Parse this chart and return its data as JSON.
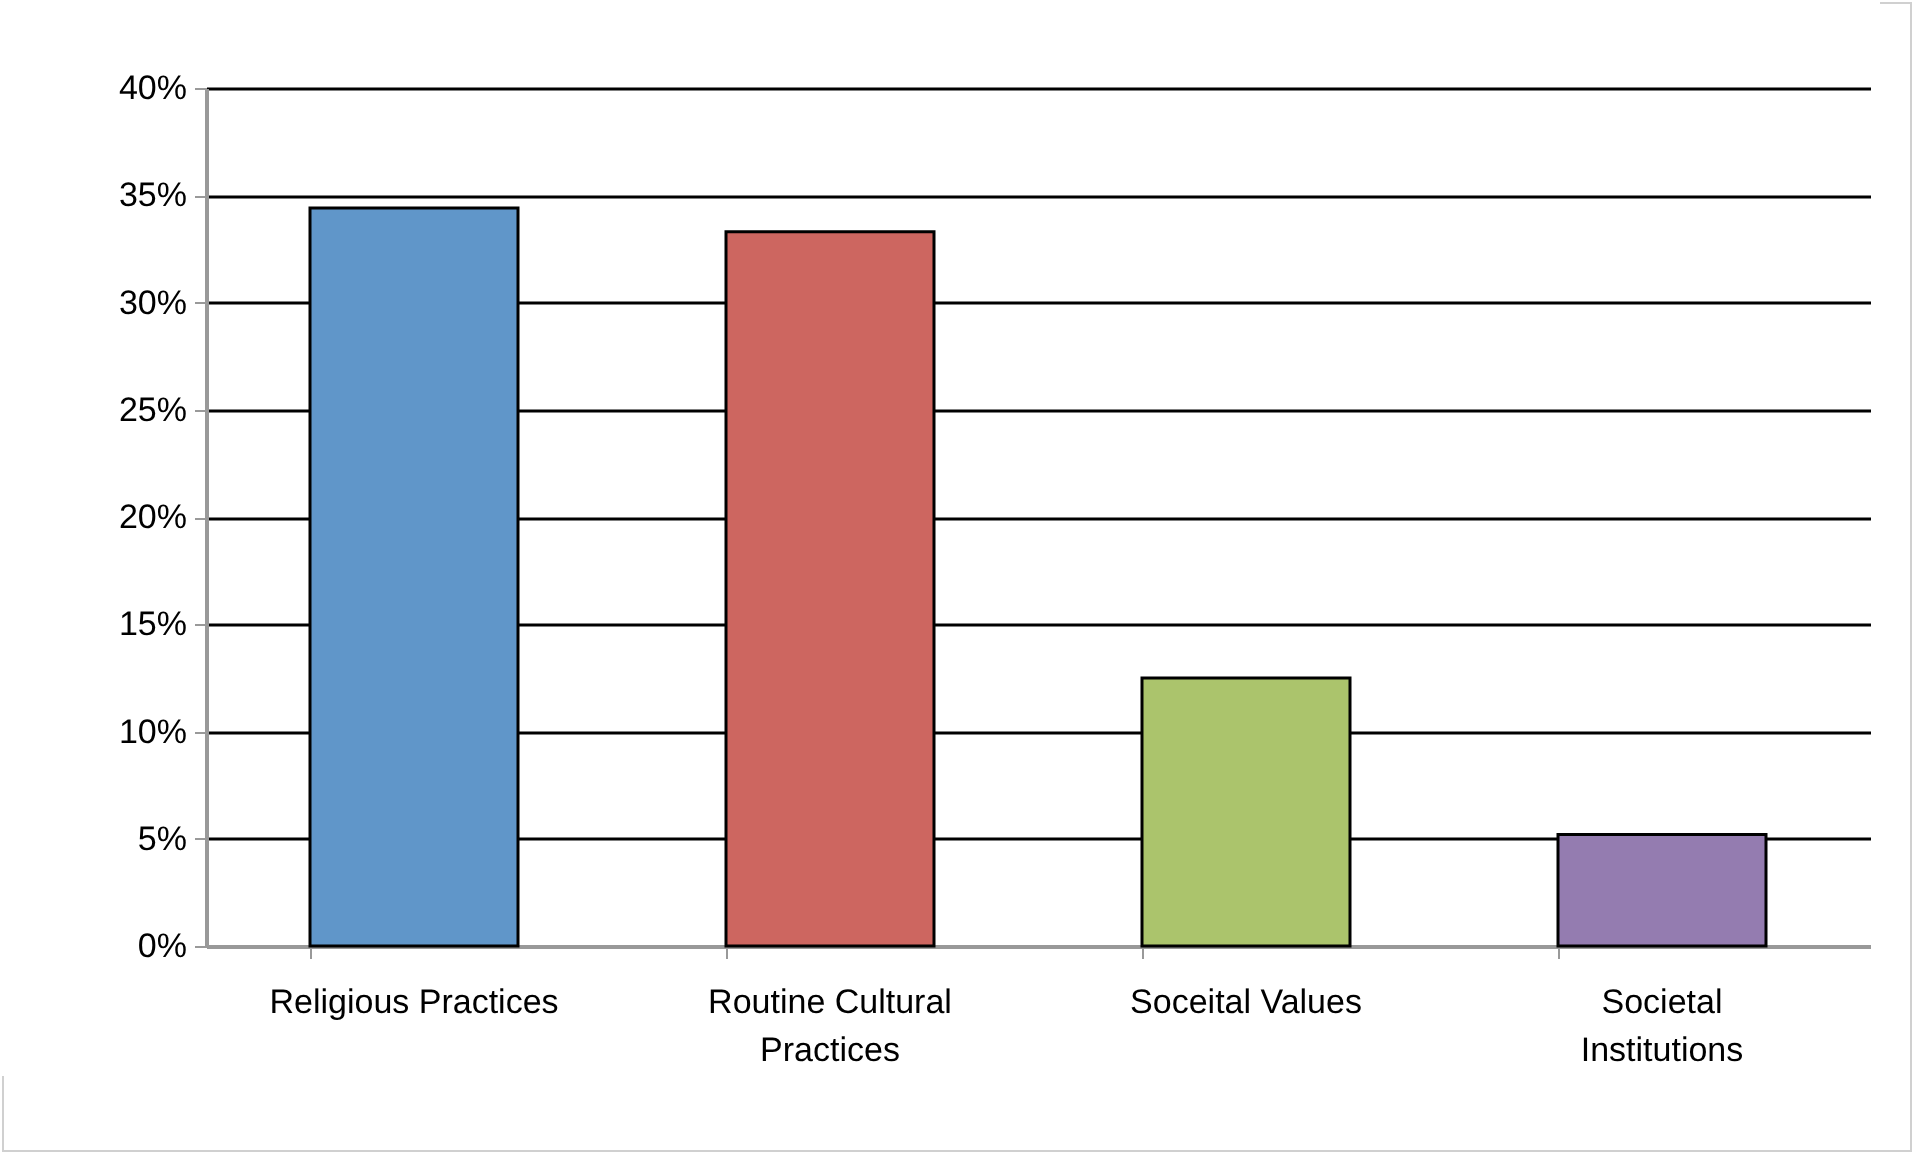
{
  "chart_data": {
    "type": "bar",
    "categories": [
      "Religious Practices",
      "Routine Cultural Practices",
      "Soceital Values",
      "Societal Institutions"
    ],
    "values": [
      34.4,
      33.3,
      12.5,
      5.2
    ],
    "colors": [
      "#6096c9",
      "#cd6660",
      "#abc46c",
      "#947cb0"
    ],
    "ylim": [
      0,
      40
    ],
    "yticks": [
      {
        "value": 0,
        "label": "0%"
      },
      {
        "value": 5,
        "label": "5%"
      },
      {
        "value": 10,
        "label": "10%"
      },
      {
        "value": 15,
        "label": "15%"
      },
      {
        "value": 20,
        "label": "20%"
      },
      {
        "value": 25,
        "label": "25%"
      },
      {
        "value": 30,
        "label": "30%"
      },
      {
        "value": 35,
        "label": "35%"
      },
      {
        "value": 40,
        "label": "40%"
      }
    ],
    "grid": "y"
  }
}
